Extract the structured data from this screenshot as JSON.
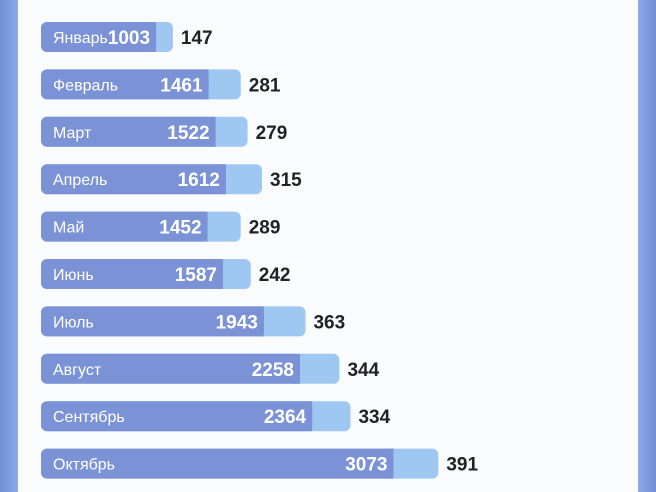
{
  "chart_data": {
    "type": "bar",
    "orientation": "horizontal",
    "stacked": true,
    "categories": [
      "Январь",
      "Февраль",
      "Март",
      "Апрель",
      "Май",
      "Июнь",
      "Июль",
      "Август",
      "Сентябрь",
      "Октябрь"
    ],
    "series": [
      {
        "values": [
          1003,
          1461,
          1522,
          1612,
          1452,
          1587,
          1943,
          2258,
          2364,
          3073
        ]
      },
      {
        "values": [
          147,
          281,
          279,
          315,
          289,
          242,
          363,
          344,
          334,
          391
        ]
      }
    ],
    "colors": {
      "primary": "#7b93d6",
      "secondary": "#9ec8f2",
      "label_text": "#ffffff",
      "value_text": "#222222"
    },
    "title": "",
    "xlabel": "",
    "ylabel": "",
    "grid": false,
    "legend": "none"
  }
}
